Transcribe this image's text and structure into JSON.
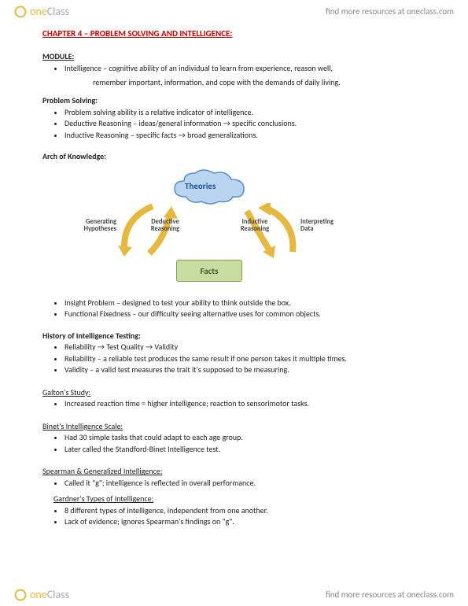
{
  "brand": {
    "one": "one",
    "class": "Class",
    "tagline": "find more resources at oneclass.com"
  },
  "chapter": "CHAPTER 4 – PROBLEM SOLVING AND INTELLIGENCE:",
  "module": {
    "heading": "MODULE:",
    "items": [
      "Intelligence – cognitive ability of an individual to learn from experience, reason well,",
      "remember important, information, and cope with the demands of daily living."
    ]
  },
  "problem_solving": {
    "heading": "Problem Solving:",
    "items": [
      "Problem solving ability is a relative indicator of intelligence.",
      "Deductive Reasoning – ideas/general information → specific conclusions.",
      "Inductive Reasoning – specific facts → broad generalizations."
    ]
  },
  "arch": {
    "heading": "Arch of Knowledge:",
    "diagram": {
      "theories": "Theories",
      "facts": "Facts",
      "gen_hyp": "Generating\nHypotheses",
      "deductive": "Deductive\nReasoning",
      "inductive": "Inductive\nReasoning",
      "interpreting": "Interpreting\nData",
      "colors": {
        "cloud_fill": "#b9d5ef",
        "cloud_stroke": "#5b8cc9",
        "facts_fill": "#c7dca0",
        "facts_stroke": "#7fa050",
        "arrow": "#e6b840"
      }
    }
  },
  "insight": {
    "items": [
      "Insight Problem – designed to test your ability to think outside the box.",
      "Functional Fixedness – our difficulty seeing alternative uses for common objects."
    ]
  },
  "history": {
    "heading": "History of Intelligence Testing:",
    "items": [
      "Reliability → Test Quality → Validity",
      "Reliability – a reliable test produces the same result if one person takes it multiple times.",
      "Validity – a valid test measures the trait it's supposed to be measuring."
    ]
  },
  "galton": {
    "heading": "Galton's Study:",
    "items": [
      "Increased reaction time = higher intelligence; reaction to sensorimotor tasks."
    ]
  },
  "binet": {
    "heading": "Binet's Intelligence Scale:",
    "items": [
      "Had 30 simple tasks that could adapt to each age group.",
      "Later called the Standford-Binet Intelligence test."
    ]
  },
  "spearman": {
    "heading": "Spearman & Generalized Intelligence:",
    "items": [
      "Called it \"g\"; intelligence is reflected in overall performance."
    ]
  },
  "gardner": {
    "heading": "Gardner's Types of Intelligence:",
    "items": [
      "8 different types of intelligence, independent from one another.",
      "Lack of evidence; ignores Spearman's findings on \"g\"."
    ]
  }
}
